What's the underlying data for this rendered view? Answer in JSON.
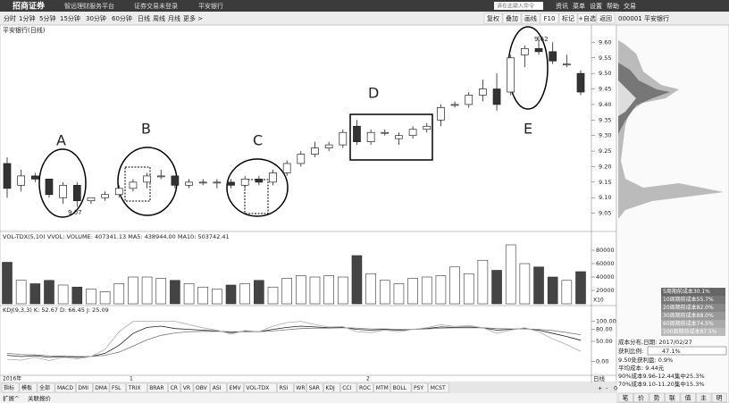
{
  "header": {
    "logo": "招商证券",
    "subtitle": "智远理财服务平台",
    "status": "证券交易未登录",
    "stock": "平安银行",
    "search": "请在此输入命令",
    "menu": [
      "资讯",
      "菜单",
      "设置",
      "帮助",
      "交易"
    ]
  },
  "toolbar": {
    "periods": [
      "分时",
      "1分钟",
      "5分钟",
      "15分钟",
      "30分钟",
      "60分钟",
      "日线",
      "周线",
      "月线",
      "更多 >"
    ],
    "tools": [
      "复权",
      "叠加",
      "画线",
      "F10",
      "标记",
      "+自选",
      "返回"
    ]
  },
  "chart_data": [
    {
      "type": "candlestick",
      "title": "平安银行(日线)",
      "open": [
        9.21,
        9.14,
        9.17,
        9.16,
        9.1,
        9.14,
        9.09,
        9.1,
        9.11,
        9.13,
        9.15,
        9.17,
        9.17,
        9.14,
        9.15,
        9.15,
        9.15,
        9.14,
        9.16,
        9.15,
        9.18,
        9.21,
        9.24,
        9.26,
        9.27,
        9.33,
        9.28,
        9.31,
        9.29,
        9.3,
        9.32,
        9.35,
        9.4,
        9.4,
        9.43,
        9.45,
        9.44,
        9.56,
        9.58,
        9.57,
        9.53,
        9.5
      ],
      "high": [
        9.23,
        9.19,
        9.18,
        9.16,
        9.15,
        9.15,
        9.1,
        9.12,
        9.14,
        9.16,
        9.18,
        9.19,
        9.17,
        9.16,
        9.16,
        9.16,
        9.16,
        9.17,
        9.17,
        9.19,
        9.22,
        9.25,
        9.28,
        9.28,
        9.32,
        9.35,
        9.32,
        9.32,
        9.31,
        9.33,
        9.34,
        9.4,
        9.41,
        9.44,
        9.48,
        9.5,
        9.56,
        9.59,
        9.62,
        9.6,
        9.56,
        9.51
      ],
      "low": [
        9.1,
        9.12,
        9.15,
        9.1,
        9.08,
        9.07,
        9.08,
        9.09,
        9.1,
        9.12,
        9.13,
        9.16,
        9.13,
        9.13,
        9.14,
        9.13,
        9.13,
        9.13,
        9.14,
        9.14,
        9.17,
        9.2,
        9.23,
        9.25,
        9.26,
        9.27,
        9.27,
        9.3,
        9.27,
        9.29,
        9.31,
        9.33,
        9.39,
        9.39,
        9.41,
        9.38,
        9.43,
        9.52,
        9.56,
        9.53,
        9.52,
        9.43
      ],
      "close": [
        9.13,
        9.17,
        9.16,
        9.11,
        9.14,
        9.09,
        9.1,
        9.11,
        9.13,
        9.15,
        9.17,
        9.17,
        9.14,
        9.15,
        9.15,
        9.15,
        9.14,
        9.16,
        9.15,
        9.18,
        9.21,
        9.24,
        9.26,
        9.27,
        9.31,
        9.28,
        9.31,
        9.31,
        9.3,
        9.32,
        9.33,
        9.39,
        9.4,
        9.43,
        9.45,
        9.4,
        9.55,
        9.58,
        9.57,
        9.54,
        9.53,
        9.44
      ],
      "ylim": [
        9.0,
        9.65
      ],
      "yticks": [
        {
          "value": 9.6,
          "label": "9.60"
        },
        9.55,
        {
          "value": 9.5,
          "label": "9.50"
        },
        9.45,
        {
          "value": 9.4,
          "label": "9.40"
        },
        9.35,
        {
          "value": 9.3,
          "label": "9.30"
        },
        9.25,
        {
          "value": 9.2,
          "label": "9.20"
        },
        9.15,
        {
          "value": 9.1,
          "label": "9.10"
        },
        9.05
      ],
      "annotations": [
        "A",
        "B",
        "C",
        "D",
        "E",
        "9.07",
        "9.62"
      ]
    },
    {
      "type": "bar",
      "title": "VOL-TDX(5,10) VVOL: VOLUME: 407341.13 MA5: 438944.00 MA10: 503742.41",
      "values": [
        62000,
        35000,
        30000,
        35000,
        28000,
        25000,
        22000,
        18000,
        30000,
        40000,
        40000,
        38000,
        35000,
        30000,
        25000,
        22000,
        28000,
        30000,
        35000,
        25000,
        38000,
        42000,
        40000,
        42000,
        40000,
        72000,
        45000,
        35000,
        30000,
        38000,
        40000,
        42000,
        55000,
        45000,
        65000,
        50000,
        88000,
        60000,
        55000,
        40000,
        35000,
        48000
      ],
      "ylim": [
        0,
        104000
      ],
      "yticks": [
        20000,
        40000,
        60000,
        80000
      ],
      "unit_label": "X10"
    },
    {
      "type": "line",
      "title": "KDJ(9,3,3) K: 52.67 D: 66.45 J: 25.09",
      "series": [
        {
          "name": "K",
          "color": "#222222",
          "values": [
            15,
            12,
            14,
            10,
            12,
            10,
            12,
            20,
            40,
            70,
            85,
            88,
            82,
            80,
            78,
            76,
            72,
            75,
            74,
            80,
            85,
            88,
            86,
            84,
            85,
            80,
            78,
            80,
            78,
            80,
            82,
            86,
            85,
            86,
            84,
            78,
            80,
            82,
            78,
            70,
            62,
            52.67
          ]
        },
        {
          "name": "D",
          "color": "#777777",
          "values": [
            20,
            17,
            16,
            14,
            13,
            12,
            12,
            15,
            23,
            38,
            54,
            65,
            71,
            74,
            75,
            75,
            74,
            74,
            74,
            76,
            79,
            82,
            83,
            83,
            84,
            83,
            81,
            81,
            80,
            80,
            81,
            83,
            84,
            84,
            84,
            82,
            81,
            81,
            80,
            77,
            72,
            66.45
          ]
        },
        {
          "name": "J",
          "color": "#aaaaaa",
          "values": [
            5,
            3,
            10,
            2,
            10,
            6,
            12,
            30,
            74,
            100,
            100,
            100,
            100,
            92,
            84,
            78,
            68,
            77,
            74,
            88,
            97,
            100,
            92,
            86,
            87,
            74,
            72,
            78,
            74,
            80,
            84,
            92,
            87,
            90,
            84,
            70,
            78,
            84,
            74,
            56,
            42,
            25.09
          ]
        }
      ],
      "ylim": [
        -35,
        135
      ],
      "yticks": [
        {
          "value": 100,
          "label": "100.00"
        },
        {
          "value": 80,
          "label": "80.00"
        },
        {
          "value": 50,
          "label": "50.00"
        },
        {
          "value": 0,
          "label": "0.00"
        }
      ]
    }
  ],
  "date_axis": [
    "2016年",
    "1",
    "2"
  ],
  "right_panel": {
    "code": "000001 平安银行",
    "legend": [
      "5周期前成本30.1%",
      "10周期前成本55.7%",
      "20周期前成本82.0%",
      "30周期前成本88.0%",
      "60周期前成本74.5%",
      "100周期前成本87.5%"
    ],
    "stats": [
      "成本分布,日期: 2017/02/27",
      "获利比例:",
      "47.1%",
      "9.50处获利盘: 0.9%",
      "平均成本: 9.44元",
      "90%成本9.96-12.44集中25.3%",
      "70%成本9.10-11.20集中15.3%"
    ],
    "buttons": [
      "笔",
      "价",
      "势",
      "联",
      "值",
      "主",
      "明"
    ]
  },
  "tabs": [
    "指标",
    "模板",
    "全部",
    "MACD",
    "DMI",
    "DMA",
    "FSL",
    "TRIX",
    "BRAR",
    "CR",
    "VR",
    "OBV",
    "ASI",
    "EMV",
    "VOL-TDX",
    "RSI",
    "WR",
    "SAR",
    "KDJ",
    "CCI",
    "ROC",
    "MTM",
    "BOLL",
    "PSY",
    "MCST"
  ],
  "tab_controls": [
    "日线",
    "+",
    "-",
    "0"
  ],
  "footer": [
    "扩展^",
    "关联报价"
  ]
}
